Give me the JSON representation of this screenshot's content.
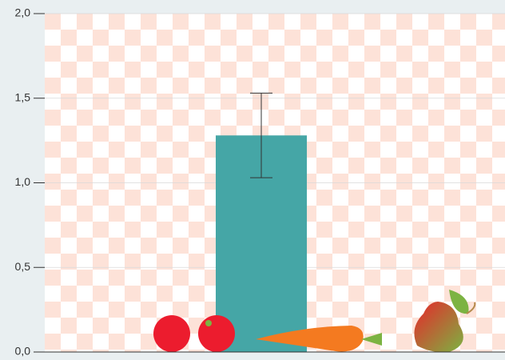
{
  "chart_data": {
    "type": "bar",
    "categories": [
      null
    ],
    "values": [
      1.28
    ],
    "errors": [
      0.25
    ],
    "color": "#45a6a6",
    "ylim": [
      0,
      2
    ],
    "yticks": [
      {
        "value": 0,
        "label": "0,0"
      },
      {
        "value": 0.5,
        "label": "0,5"
      },
      {
        "value": 1,
        "label": "1,0"
      },
      {
        "value": 1.5,
        "label": "1,5"
      },
      {
        "value": 2,
        "label": "2,0"
      }
    ],
    "grid": true
  }
}
